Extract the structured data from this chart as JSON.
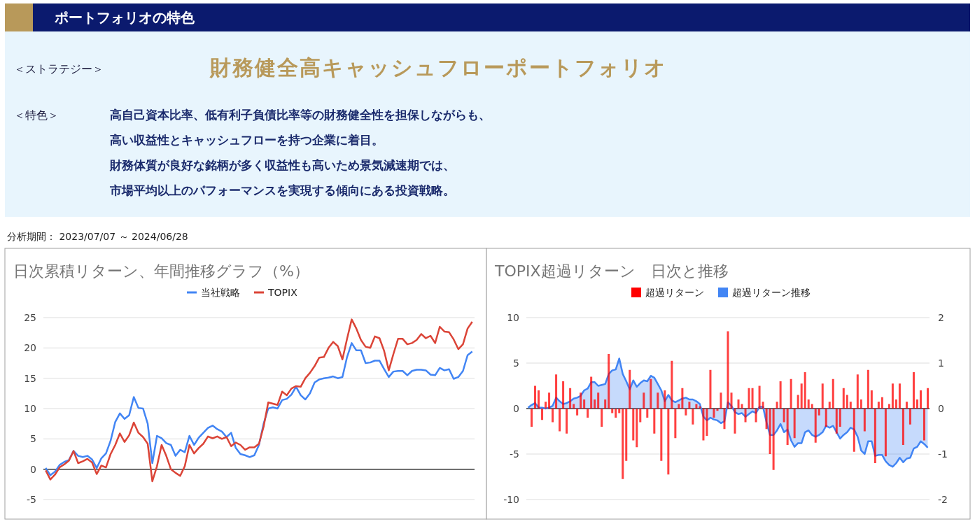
{
  "chart_data": [
    {
      "type": "other",
      "title": "ポートフォリオの特色",
      "annotations": [
        "＜ストラテジー＞",
        "財務健全高キャッシュフローポートフォリオ",
        "＜特色＞",
        "高自己資本比率、低有利子負債比率等の財務健全性を担保しながらも、",
        "高い収益性とキャッシュフローを持つ企業に着目。",
        "財務体質が良好な銘柄が多く収益性も高いため景気減速期では、",
        "市場平均以上のパフォーマンスを実現する傾向にある投資戦略。",
        "分析期間： 2023/07/07 ～ 2024/06/28"
      ]
    },
    {
      "type": "line",
      "title": "日次累積リターン、年間推移グラフ（%）",
      "categories": [
        null,
        null,
        null,
        null,
        null,
        null,
        null,
        null,
        null,
        null,
        null,
        null,
        null,
        null,
        null,
        null,
        null,
        null,
        null,
        null,
        null,
        null,
        null,
        null,
        null,
        null,
        null,
        null,
        null,
        null,
        null,
        null,
        null,
        null,
        null,
        null,
        null,
        null,
        null,
        null,
        null,
        null,
        null,
        null,
        null,
        null,
        null,
        null,
        null,
        null,
        null,
        null,
        null,
        null,
        null,
        null,
        null,
        null,
        null,
        null,
        null,
        null,
        null,
        null,
        null,
        null,
        null,
        null,
        null,
        null,
        null,
        null,
        null,
        null,
        null,
        null,
        null,
        null,
        null,
        null,
        null,
        null,
        null,
        null,
        null,
        null,
        null,
        null,
        null,
        null,
        null,
        null,
        null
      ],
      "series": [
        {
          "name": "当社戦略",
          "color": "#4285f4",
          "values": [
            0.2,
            -1.0,
            -0.4,
            0.7,
            1.2,
            1.5,
            3.0,
            2.2,
            2.0,
            2.2,
            1.6,
            0.2,
            1.8,
            2.6,
            4.7,
            7.8,
            9.2,
            8.3,
            8.9,
            11.9,
            10.1,
            10.0,
            7.5,
            1.0,
            5.5,
            5.1,
            4.3,
            4.0,
            2.2,
            3.2,
            2.8,
            5.5,
            4.0,
            5.2,
            6.0,
            6.8,
            7.2,
            6.6,
            6.2,
            5.3,
            6.0,
            3.5,
            2.5,
            2.3,
            2.0,
            2.3,
            4.0,
            7.5,
            10.0,
            10.2,
            10.0,
            11.4,
            11.6,
            12.3,
            13.6,
            12.2,
            11.5,
            12.5,
            14.3,
            14.8,
            15.0,
            15.1,
            15.3,
            15.0,
            15.2,
            18.5,
            20.8,
            19.6,
            19.6,
            17.5,
            17.6,
            17.9,
            17.9,
            16.5,
            15.2,
            16.1,
            16.2,
            16.2,
            15.5,
            16.2,
            16.4,
            16.4,
            16.3,
            15.6,
            15.5,
            16.7,
            16.3,
            16.5,
            14.9,
            15.2,
            16.2,
            18.8,
            19.4
          ]
        },
        {
          "name": "TOPIX",
          "color": "#db4437",
          "values": [
            -0.2,
            -1.7,
            -0.9,
            0.3,
            0.8,
            1.4,
            3.0,
            1.0,
            1.3,
            1.7,
            1.1,
            -0.8,
            0.6,
            0.3,
            2.5,
            4.0,
            5.9,
            4.5,
            5.6,
            7.7,
            6.0,
            5.3,
            4.2,
            -2.0,
            0.5,
            4.0,
            2.2,
            0,
            -0.6,
            -1.1,
            0.5,
            4.0,
            2.6,
            3.5,
            4.2,
            5.4,
            5.1,
            5.4,
            5.0,
            5.3,
            3.8,
            4.4,
            4.0,
            3.2,
            3.6,
            3.6,
            4.2,
            7.0,
            11.0,
            10.8,
            10.6,
            12.8,
            12.2,
            13.3,
            13.7,
            13.6,
            15.0,
            15.9,
            17.0,
            18.4,
            18.5,
            20.0,
            21.0,
            20.3,
            18.1,
            21.5,
            24.7,
            23.2,
            21.3,
            20.2,
            20.0,
            21.9,
            21.6,
            19.5,
            16.3,
            19.0,
            21.5,
            21.5,
            20.6,
            20.8,
            21.3,
            22.3,
            21.6,
            22.0,
            20.8,
            23.5,
            22.7,
            22.6,
            21.4,
            19.8,
            20.6,
            23.2,
            24.3
          ]
        }
      ],
      "ylim": [
        -5,
        25
      ],
      "yticks": [
        -5,
        0,
        5,
        10,
        15,
        20,
        25
      ],
      "grid": "y",
      "legend": "top",
      "line_style": "solid",
      "marker": "none",
      "ref_lines": [
        {
          "axis": "y",
          "value": 0,
          "color": "#333333"
        }
      ]
    },
    {
      "type": "bar",
      "title": "TOPIX超過リターン　日次と推移",
      "categories": [
        null,
        null,
        null,
        null,
        null,
        null,
        null,
        null,
        null,
        null,
        null,
        null,
        null,
        null,
        null,
        null,
        null,
        null,
        null,
        null,
        null,
        null,
        null,
        null,
        null,
        null,
        null,
        null,
        null,
        null,
        null,
        null,
        null,
        null,
        null,
        null,
        null,
        null,
        null,
        null,
        null,
        null,
        null,
        null,
        null,
        null,
        null,
        null,
        null,
        null,
        null,
        null,
        null,
        null,
        null,
        null,
        null,
        null,
        null,
        null,
        null,
        null,
        null,
        null,
        null,
        null,
        null,
        null,
        null,
        null,
        null,
        null,
        null,
        null,
        null,
        null,
        null,
        null,
        null,
        null,
        null,
        null,
        null,
        null,
        null,
        null,
        null,
        null,
        null,
        null,
        null,
        null,
        null,
        null,
        null,
        null,
        null,
        null,
        null,
        null,
        null,
        null,
        null,
        null,
        null,
        null,
        null,
        null,
        null,
        null,
        null,
        null,
        null,
        null,
        null
      ],
      "series": [
        {
          "name": "超過リターン",
          "type": "bar",
          "axis": "y2",
          "color": "#ff0000",
          "values": [
            0,
            -0.4,
            0.5,
            0.4,
            -0.25,
            0.15,
            0.35,
            -0.3,
            0.75,
            -0.5,
            0.6,
            -0.55,
            0.45,
            0.1,
            -0.15,
            0.35,
            0.2,
            -0.2,
            0.7,
            0.2,
            0.35,
            -0.4,
            0.2,
            1.2,
            -0.1,
            -0.2,
            -0.1,
            -1.55,
            -1.15,
            0.85,
            -0.7,
            -0.85,
            -0.3,
            0.35,
            -0.2,
            0.65,
            -0.55,
            0.35,
            -1.15,
            0.4,
            -1.45,
            1.05,
            -0.65,
            0.1,
            0.45,
            -0.15,
            0.15,
            -0.35,
            0.1,
            0.05,
            -0.7,
            -0.6,
            0.85,
            -0.2,
            -0.05,
            0.35,
            -0.45,
            1.7,
            0.35,
            -0.55,
            0.2,
            0.1,
            -0.3,
            0.45,
            0.45,
            -0.3,
            0.5,
            0.15,
            -0.45,
            -1.0,
            -1.35,
            0.15,
            0.6,
            -0.3,
            -0.8,
            0.65,
            -0.65,
            0.3,
            0.55,
            0.8,
            0.2,
            0.1,
            -0.75,
            -0.15,
            0.55,
            -0.4,
            0.15,
            0.65,
            -0.55,
            -0.4,
            0.45,
            0.3,
            0.15,
            -0.95,
            0.75,
            0.2,
            -0.5,
            0.85,
            0.4,
            -1.2,
            0.15,
            0.25,
            -1.05,
            0.1,
            0.55,
            0.2,
            0.55,
            -0.8,
            0.15,
            -0.35,
            0.8,
            0.2,
            0.4,
            -0.7,
            0.45
          ]
        },
        {
          "name": "超過リターン推移",
          "type": "area",
          "axis": "y",
          "color": "#4285f4",
          "values": [
            0.1,
            0.4,
            0.6,
            0.1,
            0.1,
            0,
            0.1,
            0.3,
            1.2,
            0.8,
            0.5,
            0.6,
            0.8,
            1.1,
            1.2,
            1.4,
            2.0,
            2.2,
            2.9,
            2.9,
            2.5,
            2.6,
            2.7,
            3.8,
            4.2,
            4.3,
            5.5,
            3.8,
            3.0,
            2.1,
            3.1,
            2.4,
            2.8,
            3.1,
            3.0,
            3.6,
            3.4,
            2.7,
            2.0,
            0.8,
            1.5,
            0.9,
            0.7,
            0.9,
            1.1,
            1.2,
            1.0,
            1.0,
            0.8,
            0.5,
            -0.9,
            -1.3,
            -1.0,
            -1.2,
            -1.3,
            -1.6,
            -1.4,
            0.7,
            0.3,
            -0.4,
            -0.6,
            -0.5,
            -0.9,
            -0.6,
            -0.3,
            -0.5,
            0.2,
            0.2,
            -1.5,
            -2.9,
            -2.9,
            -2.4,
            -1.7,
            -2.6,
            -2.3,
            -3.5,
            -4.2,
            -3.8,
            -3.8,
            -2.6,
            -2.4,
            -2.9,
            -3.1,
            -2.9,
            -2.6,
            -1.9,
            -2.1,
            -1.9,
            -2.6,
            -3.3,
            -2.9,
            -2.6,
            -2.1,
            -2.3,
            -3.1,
            -4.6,
            -5.0,
            -3.6,
            -3.6,
            -5.2,
            -5.1,
            -5.1,
            -5.8,
            -6.2,
            -6.4,
            -6.0,
            -5.4,
            -5.9,
            -5.5,
            -5.4,
            -4.4,
            -4.2,
            -3.6,
            -3.9,
            -4.3
          ]
        }
      ],
      "ylim": [
        -10,
        10
      ],
      "yticks": [
        -10,
        -5,
        0,
        5,
        10
      ],
      "y2lim": [
        -2,
        2
      ],
      "y2ticks": [
        -2,
        -1,
        0,
        1,
        2
      ],
      "grid": "y",
      "legend": "top",
      "ref_lines": [
        {
          "axis": "y",
          "value": 0,
          "color": "#333333"
        }
      ]
    }
  ]
}
